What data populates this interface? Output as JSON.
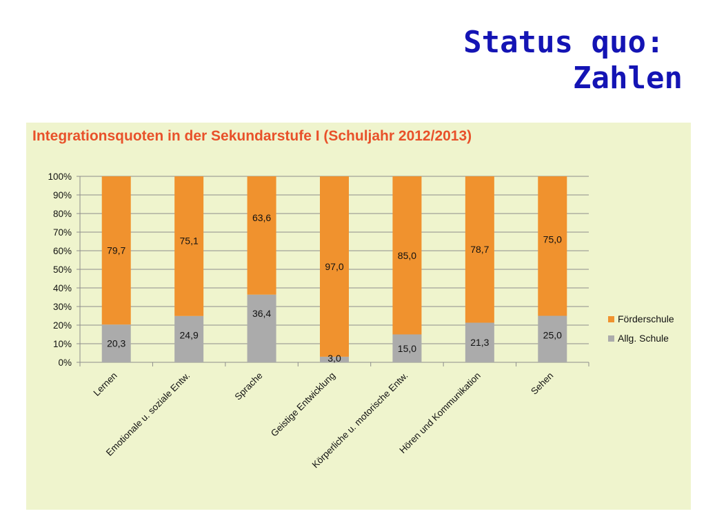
{
  "slide": {
    "title_line1": "Status quo: ",
    "title_line2": "Zahlen"
  },
  "colors": {
    "title": "#1414b4",
    "panel_background": "#eff4cd",
    "chart_title": "#e8512a",
    "foerderschule": "#f0922e",
    "allg_schule": "#ababab",
    "gridline": "#8c8c8c"
  },
  "chart_data": {
    "type": "bar",
    "stacked": true,
    "title": "Integrationsquoten in der Sekundarstufe I (Schuljahr 2012/2013)",
    "xlabel": "",
    "ylabel": "",
    "ylim": [
      0,
      100
    ],
    "y_ticks": [
      "0%",
      "10%",
      "20%",
      "30%",
      "40%",
      "50%",
      "60%",
      "70%",
      "80%",
      "90%",
      "100%"
    ],
    "grid": true,
    "legend_position": "right",
    "categories": [
      "Lernen",
      "Emotionale u. soziale Entw.",
      "Sprache",
      "Geistige Entwicklung",
      "Körperliche u. motorische Entw.",
      "Hören und Kommunikation",
      "Sehen"
    ],
    "series": [
      {
        "name": "Allg. Schule",
        "values": [
          20.3,
          24.9,
          36.4,
          3.0,
          15.0,
          21.3,
          25.0
        ],
        "labels": [
          "20,3",
          "24,9",
          "36,4",
          "3,0",
          "15,0",
          "21,3",
          "25,0"
        ]
      },
      {
        "name": "Förderschule",
        "values": [
          79.7,
          75.1,
          63.6,
          97.0,
          85.0,
          78.7,
          75.0
        ],
        "labels": [
          "79,7",
          "75,1",
          "63,6",
          "97,0",
          "85,0",
          "78,7",
          "75,0"
        ]
      }
    ],
    "legend": [
      "Förderschule",
      "Allg. Schule"
    ]
  }
}
